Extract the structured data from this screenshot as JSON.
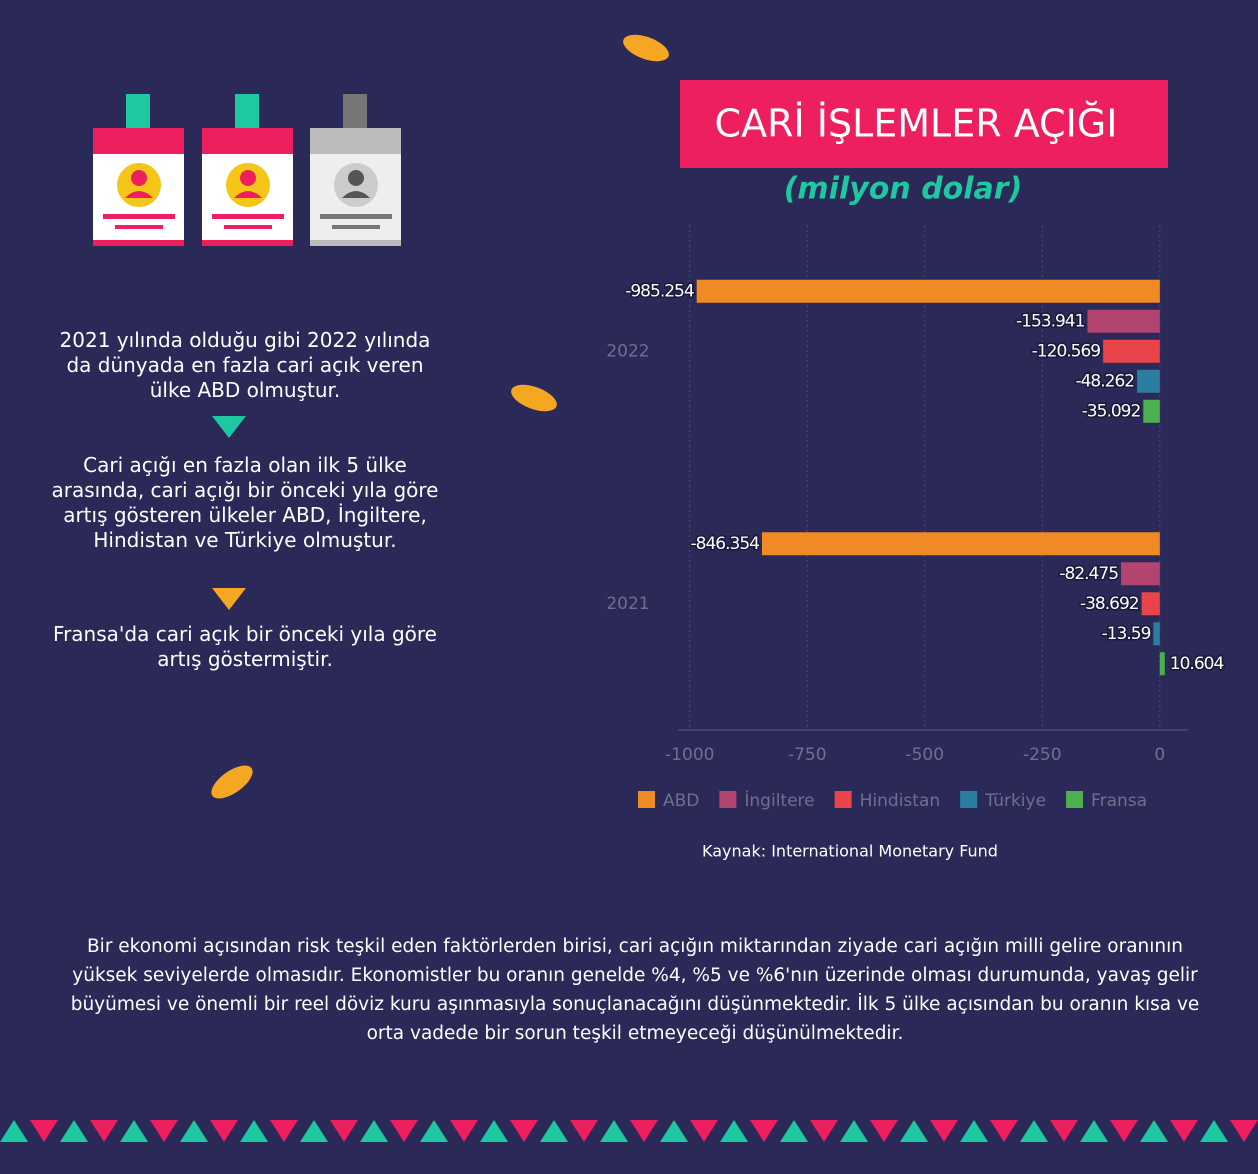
{
  "left_texts": [
    "2021 yılında olduğu gibi 2022 yılında da dünyada en fazla cari açık veren ülke ABD olmuştur.",
    "Cari açığı en fazla olan ilk 5 ülke arasında, cari açığı bir önceki yıla göre artış gösteren ülkeler ABD, İngiltere, Hindistan ve Türkiye olmuştur.",
    "Fransa'da cari açık bir önceki yıla göre artış göstermiştir."
  ],
  "bottom_text": "Bir ekonomi açısından risk teşkil eden faktörlerden birisi, cari açığın miktarından ziyade cari açığın milli gelire oranının yüksek seviyelerde olmasıdır. Ekonomistler bu oranın genelde %4, %5 ve %6'nın üzerinde olması durumunda, yavaş gelir büyümesi ve önemli bir reel döviz kuru aşınmasıyla sonuçlanacağını düşünmektedir. İlk 5 ülke açısından bu oranın kısa ve orta vadede bir sorun teşkil etmeyeceği düşünülmektedir.",
  "chart_data": {
    "type": "bar",
    "orientation": "horizontal",
    "title": "CARİ İŞLEMLER AÇIĞI",
    "subtitle": "(milyon dolar)",
    "source": "Kaynak: International Monetary Fund",
    "categories": [
      "2022",
      "2021"
    ],
    "series": [
      {
        "name": "ABD",
        "color": "#f08a24",
        "values": [
          -985.254,
          -846.354
        ]
      },
      {
        "name": "İngiltere",
        "color": "#b3436f",
        "values": [
          -153.941,
          -82.475
        ]
      },
      {
        "name": "Hindistan",
        "color": "#e8444a",
        "values": [
          -120.569,
          -38.692
        ]
      },
      {
        "name": "Türkiye",
        "color": "#2c7ea1",
        "values": [
          -48.262,
          -13.59
        ]
      },
      {
        "name": "Fransa",
        "color": "#4caf50",
        "values": [
          -35.092,
          10.604
        ]
      }
    ],
    "xlim": [
      -1025,
      60
    ],
    "xticks": [
      -1000,
      -750,
      -500,
      -250,
      0
    ],
    "grid": true,
    "legend": "bottom"
  }
}
